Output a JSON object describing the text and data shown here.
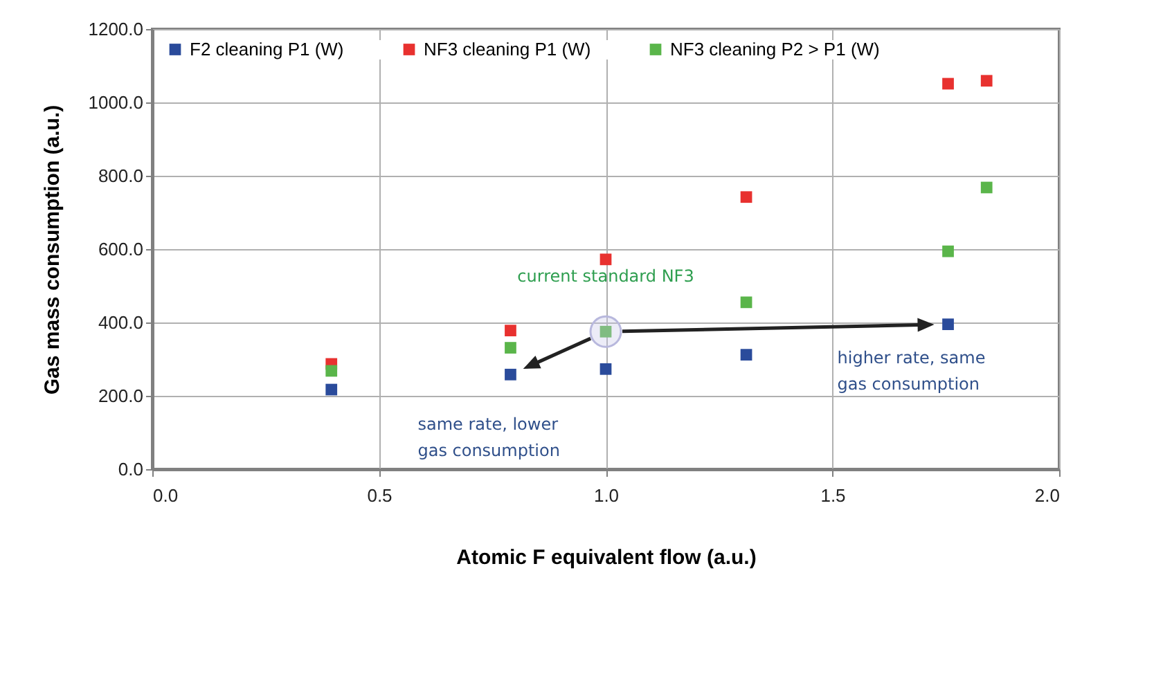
{
  "chart_data": {
    "type": "scatter",
    "xlabel": "Atomic F equivalent flow (a.u.)",
    "ylabel": "Gas mass consumption (a.u.)",
    "xlim": [
      0,
      2
    ],
    "xticks": [
      {
        "value": 0,
        "label": "0.0"
      },
      {
        "value": 0.5,
        "label": "0.5"
      },
      {
        "value": 1,
        "label": "1.0"
      },
      {
        "value": 1.5,
        "label": "1.5"
      },
      {
        "value": 2,
        "label": "2.0"
      }
    ],
    "ylim": [
      0,
      1200
    ],
    "yticks": [
      {
        "value": 0,
        "label": "0.0"
      },
      {
        "value": 200,
        "label": "200.0"
      },
      {
        "value": 400,
        "label": "400.0"
      },
      {
        "value": 600,
        "label": "600.0"
      },
      {
        "value": 800,
        "label": "800.0"
      },
      {
        "value": 1000,
        "label": "1000.0"
      },
      {
        "value": 1200,
        "label": "1200.0"
      }
    ],
    "grid": true,
    "legend": "top",
    "marker": "square",
    "series": [
      {
        "name": "F2 cleaning P1 (W)",
        "color": "#2a4b9b",
        "x": [
          0.395,
          0.79,
          1.0,
          1.31,
          1.755
        ],
        "values": [
          217,
          258,
          273,
          312,
          395
        ]
      },
      {
        "name": "NF3 cleaning P1 (W)",
        "color": "#e8312f",
        "x": [
          0.395,
          0.79,
          1.0,
          1.31,
          1.755,
          1.84
        ],
        "values": [
          287,
          378,
          572,
          742,
          1051,
          1059
        ]
      },
      {
        "name": "NF3 cleaning P2 > P1 (W)",
        "color": "#5ab54a",
        "x": [
          0.395,
          0.79,
          1.0,
          1.31,
          1.755,
          1.84
        ],
        "values": [
          268,
          331,
          375,
          455,
          594,
          768
        ]
      }
    ],
    "annotations": [
      {
        "text": "current standard NF3",
        "x": 1.0,
        "y": 375
      },
      {
        "text": "same rate, lower gas consumption",
        "x": 0.79,
        "y": 258
      },
      {
        "text": "higher rate, same gas consumption",
        "x": 1.755,
        "y": 395
      }
    ]
  }
}
